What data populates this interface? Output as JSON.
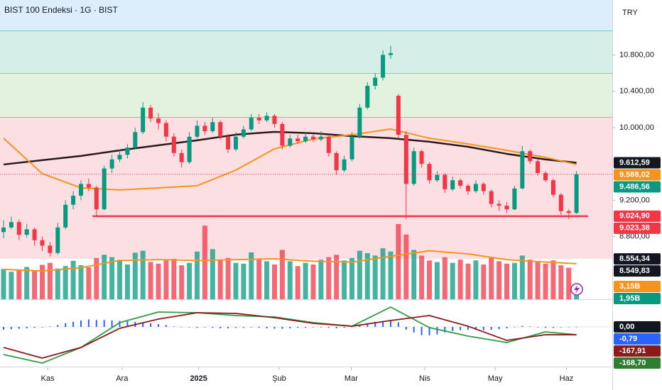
{
  "chart_data": {
    "type": "candlestick",
    "title": "BIST 100 Endeksi · 1G · BIST",
    "currency": "TRY",
    "ylim": [
      8555,
      11405
    ],
    "yticks": [
      {
        "value": 10800,
        "label": "10.800,00"
      },
      {
        "value": 10400,
        "label": "10.400,00"
      },
      {
        "value": 10000,
        "label": "10.000,00"
      },
      {
        "value": 9200,
        "label": "9.200,00"
      },
      {
        "value": 8800,
        "label": "8.800,00"
      }
    ],
    "xticks": [
      {
        "value": 5.7,
        "label": "Kas"
      },
      {
        "value": 15.3,
        "label": "Ara"
      },
      {
        "value": 25.2,
        "label": "2025"
      },
      {
        "value": 35.6,
        "label": "Şub"
      },
      {
        "value": 44.9,
        "label": "Mar"
      },
      {
        "value": 54.4,
        "label": "Nis"
      },
      {
        "value": 63.5,
        "label": "May"
      },
      {
        "value": 72.7,
        "label": "Haz"
      }
    ],
    "up_color": "#089981",
    "down_color": "#f23645",
    "zones": [
      {
        "from": 11062,
        "to": 11405,
        "color": "#dcedfb",
        "line": "#26a69a"
      },
      {
        "from": 10593,
        "to": 11062,
        "color": "#d6eee8",
        "line": "#4caf50"
      },
      {
        "from": 10109,
        "to": 10593,
        "color": "#e2f2df",
        "line": "#e53935"
      },
      {
        "from": 8555,
        "to": 10109,
        "color": "#fbdfe2",
        "line": null
      }
    ],
    "support": {
      "value": 9024.9,
      "from": 11.5,
      "to": 75.5,
      "color": "#f23645"
    },
    "candles": [
      [
        8850,
        8980,
        8780,
        8900
      ],
      [
        8900,
        9020,
        8880,
        8960
      ],
      [
        8960,
        8990,
        8760,
        8820
      ],
      [
        8820,
        8940,
        8790,
        8880
      ],
      [
        8880,
        8900,
        8700,
        8760
      ],
      [
        8760,
        8800,
        8640,
        8700
      ],
      [
        8700,
        8740,
        8580,
        8620
      ],
      [
        8620,
        8950,
        8600,
        8900
      ],
      [
        8900,
        9200,
        8880,
        9150
      ],
      [
        9150,
        9300,
        9100,
        9250
      ],
      [
        9250,
        9420,
        9200,
        9380
      ],
      [
        9380,
        9440,
        9300,
        9340
      ],
      [
        9340,
        9360,
        9030,
        9100
      ],
      [
        9100,
        9580,
        9090,
        9550
      ],
      [
        9550,
        9700,
        9500,
        9650
      ],
      [
        9650,
        9760,
        9620,
        9700
      ],
      [
        9700,
        9820,
        9660,
        9780
      ],
      [
        9780,
        10000,
        9760,
        9950
      ],
      [
        9950,
        10280,
        9930,
        10220
      ],
      [
        10220,
        10250,
        10060,
        10100
      ],
      [
        10100,
        10160,
        9980,
        10050
      ],
      [
        10050,
        10080,
        9850,
        9900
      ],
      [
        9900,
        9940,
        9680,
        9720
      ],
      [
        9720,
        9760,
        9560,
        9620
      ],
      [
        9620,
        9950,
        9600,
        9900
      ],
      [
        9900,
        10080,
        9880,
        10020
      ],
      [
        10020,
        10060,
        9920,
        9960
      ],
      [
        9960,
        10110,
        9940,
        10060
      ],
      [
        10060,
        10080,
        9870,
        9900
      ],
      [
        9900,
        9930,
        9720,
        9760
      ],
      [
        9760,
        9950,
        9740,
        9900
      ],
      [
        9900,
        10020,
        9880,
        9980
      ],
      [
        9980,
        10150,
        9960,
        10110
      ],
      [
        10110,
        10150,
        10040,
        10080
      ],
      [
        10080,
        10170,
        10060,
        10130
      ],
      [
        10130,
        10150,
        10000,
        10040
      ],
      [
        10040,
        10060,
        9760,
        9800
      ],
      [
        9800,
        9920,
        9780,
        9880
      ],
      [
        9880,
        9920,
        9820,
        9850
      ],
      [
        9850,
        9950,
        9830,
        9900
      ],
      [
        9900,
        9930,
        9840,
        9870
      ],
      [
        9870,
        9960,
        9850,
        9900
      ],
      [
        9900,
        9920,
        9680,
        9720
      ],
      [
        9720,
        9740,
        9480,
        9530
      ],
      [
        9530,
        9690,
        9510,
        9650
      ],
      [
        9650,
        9950,
        9630,
        9900
      ],
      [
        9900,
        10260,
        9880,
        10220
      ],
      [
        10220,
        10500,
        10200,
        10460
      ],
      [
        10460,
        10600,
        10420,
        10550
      ],
      [
        10550,
        10850,
        10520,
        10800
      ],
      [
        10800,
        10900,
        10760,
        10820
      ],
      [
        10350,
        10370,
        9880,
        9920
      ],
      [
        9920,
        9960,
        8990,
        9380
      ],
      [
        9380,
        9780,
        9360,
        9740
      ],
      [
        9740,
        9760,
        9560,
        9600
      ],
      [
        9600,
        9620,
        9380,
        9420
      ],
      [
        9420,
        9520,
        9400,
        9480
      ],
      [
        9480,
        9500,
        9280,
        9320
      ],
      [
        9320,
        9460,
        9300,
        9420
      ],
      [
        9420,
        9440,
        9330,
        9360
      ],
      [
        9360,
        9380,
        9260,
        9300
      ],
      [
        9300,
        9420,
        9280,
        9380
      ],
      [
        9380,
        9400,
        9260,
        9300
      ],
      [
        9300,
        9320,
        9120,
        9160
      ],
      [
        9160,
        9200,
        9080,
        9140
      ],
      [
        9140,
        9180,
        9060,
        9100
      ],
      [
        9100,
        9360,
        9090,
        9330
      ],
      [
        9330,
        9800,
        9320,
        9740
      ],
      [
        9740,
        9760,
        9600,
        9630
      ],
      [
        9630,
        9650,
        9470,
        9500
      ],
      [
        9500,
        9520,
        9400,
        9420
      ],
      [
        9420,
        9440,
        9230,
        9260
      ],
      [
        9260,
        9280,
        9040,
        9080
      ],
      [
        9080,
        9100,
        8990,
        9060
      ],
      [
        9060,
        9520,
        9050,
        9486.56
      ]
    ],
    "price_lines": [
      {
        "color": "#2a1a1a",
        "width": 2.5,
        "x": [
          0,
          5,
          10,
          15,
          20,
          25,
          30,
          35,
          40,
          45,
          50,
          55,
          60,
          65,
          70,
          74
        ],
        "values": [
          9594,
          9641,
          9688,
          9750,
          9805,
          9860,
          9922,
          9953,
          9938,
          9906,
          9883,
          9844,
          9789,
          9711,
          9649,
          9613
        ]
      },
      {
        "color": "#f7931a",
        "width": 2,
        "x": [
          0,
          5,
          10,
          15,
          20,
          25,
          30,
          35,
          40,
          45,
          50,
          55,
          60,
          65,
          70,
          74
        ],
        "values": [
          9883,
          9493,
          9336,
          9313,
          9336,
          9360,
          9532,
          9766,
          9875,
          9922,
          9984,
          9883,
          9820,
          9750,
          9672,
          9594
        ]
      }
    ],
    "volume": {
      "ylim": [
        0,
        20
      ],
      "values": [
        7.5,
        6.8,
        7.2,
        8.0,
        7.0,
        8.5,
        9.0,
        7.6,
        8.2,
        9.5,
        8.4,
        7.9,
        10.2,
        11.0,
        10.4,
        9.8,
        8.6,
        11.5,
        12.0,
        9.2,
        8.8,
        9.6,
        10.0,
        8.4,
        9.0,
        11.8,
        18.2,
        12.4,
        9.6,
        10.2,
        9.0,
        8.8,
        11.6,
        10.0,
        9.4,
        8.6,
        12.2,
        9.4,
        8.2,
        9.0,
        8.6,
        9.8,
        10.4,
        11.0,
        9.6,
        10.2,
        12.0,
        11.4,
        10.8,
        12.6,
        11.8,
        18.6,
        16.0,
        12.2,
        10.8,
        9.6,
        9.2,
        10.4,
        9.0,
        9.8,
        8.8,
        9.6,
        8.6,
        10.2,
        9.4,
        8.8,
        9.0,
        10.8,
        9.8,
        9.2,
        8.8,
        9.6,
        8.4,
        7.8,
        3.15
      ],
      "ma": {
        "color": "#f7931a",
        "x": [
          0,
          5,
          10,
          15,
          20,
          25,
          30,
          35,
          40,
          45,
          50,
          55,
          60,
          65,
          70,
          74
        ],
        "values": [
          7.4,
          7.0,
          7.8,
          9.6,
          9.8,
          9.6,
          9.8,
          10.0,
          9.4,
          9.2,
          10.6,
          12.0,
          11.2,
          9.8,
          9.2,
          8.8
        ]
      }
    },
    "macd": {
      "ylim": [
        -826,
        551
      ],
      "histogram_color": "#2962ff",
      "histogram": [
        -60,
        -50,
        -40,
        -30,
        -20,
        -10,
        10,
        40,
        80,
        110,
        140,
        160,
        150,
        150,
        140,
        130,
        120,
        110,
        100,
        80,
        60,
        40,
        10,
        0,
        -10,
        -20,
        -10,
        -20,
        -30,
        -30,
        -20,
        -20,
        -10,
        -20,
        -30,
        -40,
        -40,
        -30,
        -20,
        -20,
        -10,
        -10,
        -20,
        -30,
        -20,
        0,
        40,
        80,
        110,
        130,
        140,
        100,
        -60,
        -120,
        -180,
        -180,
        -160,
        -120,
        -90,
        -70,
        -60,
        -60,
        -70,
        -60,
        -50,
        -30,
        0,
        20,
        10,
        -10,
        -20,
        -20,
        -10,
        0,
        -0.79
      ],
      "lines": [
        {
          "color": "#2e9e3e",
          "x": [
            0,
            5,
            10,
            15,
            20,
            25,
            30,
            35,
            40,
            45,
            50,
            55,
            60,
            65,
            70,
            74
          ],
          "values": [
            -597,
            -780,
            -444,
            92,
            321,
            306,
            245,
            214,
            92,
            15,
            428,
            -15,
            -199,
            -337,
            -107,
            -167.91
          ]
        },
        {
          "color": "#8b1a1a",
          "x": [
            0,
            5,
            10,
            15,
            20,
            25,
            30,
            35,
            40,
            45,
            50,
            55,
            60,
            65,
            70,
            74
          ],
          "values": [
            -444,
            -673,
            -444,
            -31,
            168,
            306,
            291,
            199,
            77,
            15,
            138,
            245,
            15,
            -291,
            -168,
            -168.7
          ]
        }
      ]
    },
    "price_labels": [
      {
        "value": 9612.59,
        "label": "9.612,59",
        "color": "#131722",
        "axis": "price"
      },
      {
        "value": 9588.02,
        "label": "9.588,02",
        "color": "#f7931a",
        "axis": "price"
      },
      {
        "value": 9486.56,
        "label": "9.486,56",
        "color": "#089981",
        "axis": "price"
      },
      {
        "value": 9024.9,
        "label": "9.024,90",
        "color": "#f23645",
        "axis": "price"
      },
      {
        "value": 9023.38,
        "label": "9.023,38",
        "color": "#f23645",
        "axis": "price"
      },
      {
        "value": 8554.34,
        "label": "8.554,34",
        "color": "#131722",
        "axis": "price"
      },
      {
        "value": 8549.83,
        "label": "8.549,83",
        "color": "#131722",
        "axis": "price"
      },
      {
        "value": 3.15,
        "label": "3,15B",
        "color": "#f7931a",
        "axis": "volume"
      },
      {
        "value": 1.95,
        "label": "1,95B",
        "color": "#089981",
        "axis": "volume"
      },
      {
        "value": 0,
        "label": "0,00",
        "color": "#131722",
        "axis": "macd"
      },
      {
        "value": -0.79,
        "label": "-0,79",
        "color": "#2962ff",
        "axis": "macd"
      },
      {
        "value": -167.91,
        "label": "-167,91",
        "color": "#8b1a1a",
        "axis": "macd"
      },
      {
        "value": -168.7,
        "label": "-168,70",
        "color": "#2e7d32",
        "axis": "macd"
      }
    ]
  }
}
